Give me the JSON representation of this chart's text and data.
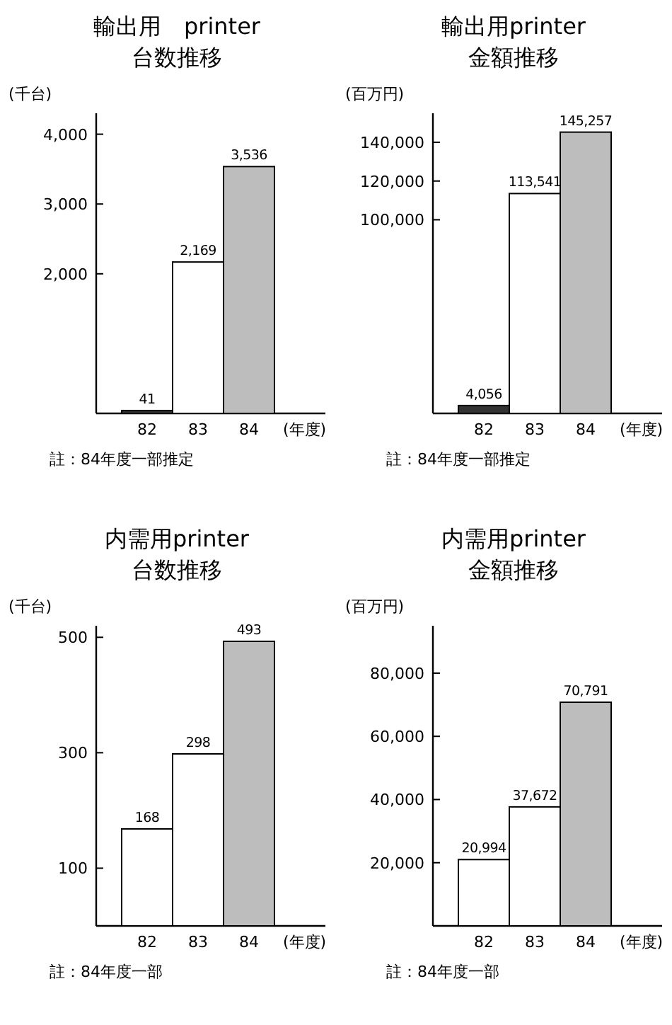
{
  "chart_data": [
    {
      "type": "bar",
      "title": "輸出用　printer",
      "subtitle": "台数推移",
      "ylabel": "(千台)",
      "xlabel": "(年度)",
      "categories": [
        "82",
        "83",
        "84"
      ],
      "values": [
        41,
        2169,
        3536
      ],
      "value_labels": [
        "41",
        "2,169",
        "3,536"
      ],
      "colors": [
        "#333333",
        "#ffffff",
        "#bdbdbd"
      ],
      "ylim": [
        0,
        4300
      ],
      "yticks": [
        {
          "value": 2000,
          "label": "2,000"
        },
        {
          "value": 3000,
          "label": "3,000"
        },
        {
          "value": 4000,
          "label": "4,000"
        }
      ],
      "annotations": [
        "註：84年度一部推定"
      ]
    },
    {
      "type": "bar",
      "title": "輸出用printer",
      "subtitle": "金額推移",
      "ylabel": "(百万円)",
      "xlabel": "(年度)",
      "categories": [
        "82",
        "83",
        "84"
      ],
      "values": [
        4056,
        113541,
        145257
      ],
      "value_labels": [
        "4,056",
        "113,541",
        "145,257"
      ],
      "colors": [
        "#333333",
        "#ffffff",
        "#bdbdbd"
      ],
      "ylim": [
        0,
        155000
      ],
      "yticks": [
        {
          "value": 100000,
          "label": "100,000"
        },
        {
          "value": 120000,
          "label": "120,000"
        },
        {
          "value": 140000,
          "label": "140,000"
        }
      ],
      "annotations": [
        "註：84年度一部推定"
      ]
    },
    {
      "type": "bar",
      "title": "内需用printer",
      "subtitle": "台数推移",
      "ylabel": "(千台)",
      "xlabel": "(年度)",
      "categories": [
        "82",
        "83",
        "84"
      ],
      "values": [
        168,
        298,
        493
      ],
      "value_labels": [
        "168",
        "298",
        "493"
      ],
      "colors": [
        "#ffffff",
        "#ffffff",
        "#bdbdbd"
      ],
      "ylim": [
        0,
        520
      ],
      "yticks": [
        100,
        300,
        500
      ],
      "annotations": [
        "註：84年度一部"
      ]
    },
    {
      "type": "bar",
      "title": "内需用printer",
      "subtitle": "金額推移",
      "ylabel": "(百万円)",
      "xlabel": "(年度)",
      "categories": [
        "82",
        "83",
        "84"
      ],
      "values": [
        20994,
        37672,
        70791
      ],
      "value_labels": [
        "20,994",
        "37,672",
        "70,791"
      ],
      "colors": [
        "#ffffff",
        "#ffffff",
        "#bdbdbd"
      ],
      "ylim": [
        0,
        95000
      ],
      "yticks": [
        {
          "value": 20000,
          "label": "20,000"
        },
        {
          "value": 40000,
          "label": "40,000"
        },
        {
          "value": 60000,
          "label": "60,000"
        },
        {
          "value": 80000,
          "label": "80,000"
        }
      ],
      "annotations": [
        "註：84年度一部"
      ]
    }
  ]
}
